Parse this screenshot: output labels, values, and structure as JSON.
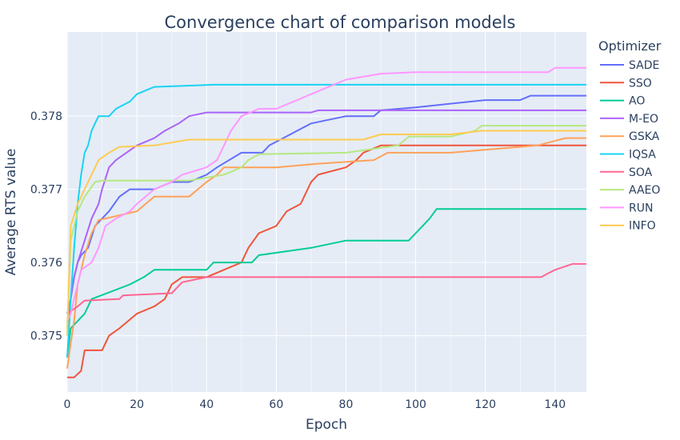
{
  "chart_data": {
    "type": "line",
    "title": "Convergence chart of comparison models",
    "xlabel": "Epoch",
    "ylabel": "Average RTS value",
    "xlim": [
      0,
      149
    ],
    "ylim": [
      0.37423,
      0.37915
    ],
    "xticks": [
      0,
      20,
      40,
      60,
      80,
      100,
      120,
      140
    ],
    "yticks": [
      0.375,
      0.376,
      0.377,
      0.378
    ],
    "ytick_labels": [
      "0.375",
      "0.376",
      "0.377",
      "0.378"
    ],
    "grid": true,
    "legend_title": "Optimizer",
    "legend_position": "right",
    "series": [
      {
        "name": "SADE",
        "color": "#636efa",
        "points": [
          [
            0,
            0.3751
          ],
          [
            1,
            0.3755
          ],
          [
            2,
            0.3758
          ],
          [
            3,
            0.376
          ],
          [
            4,
            0.3761
          ],
          [
            6,
            0.3762
          ],
          [
            8,
            0.3765
          ],
          [
            10,
            0.3766
          ],
          [
            12,
            0.3767
          ],
          [
            15,
            0.3769
          ],
          [
            18,
            0.377
          ],
          [
            25,
            0.377
          ],
          [
            30,
            0.3771
          ],
          [
            35,
            0.3771
          ],
          [
            40,
            0.3772
          ],
          [
            43,
            0.3773
          ],
          [
            50,
            0.3775
          ],
          [
            56,
            0.3775
          ],
          [
            58,
            0.3776
          ],
          [
            62,
            0.3777
          ],
          [
            70,
            0.3779
          ],
          [
            80,
            0.378
          ],
          [
            88,
            0.378
          ],
          [
            90,
            0.37808
          ],
          [
            100,
            0.37812
          ],
          [
            110,
            0.37817
          ],
          [
            120,
            0.37822
          ],
          [
            130,
            0.37822
          ],
          [
            133,
            0.37828
          ],
          [
            149,
            0.37828
          ]
        ]
      },
      {
        "name": "SSO",
        "color": "#ef553b",
        "points": [
          [
            0,
            0.37443
          ],
          [
            2,
            0.37443
          ],
          [
            4,
            0.37452
          ],
          [
            5,
            0.3748
          ],
          [
            10,
            0.3748
          ],
          [
            12,
            0.375
          ],
          [
            15,
            0.3751
          ],
          [
            20,
            0.3753
          ],
          [
            25,
            0.3754
          ],
          [
            28,
            0.3755
          ],
          [
            30,
            0.3757
          ],
          [
            33,
            0.3758
          ],
          [
            40,
            0.3758
          ],
          [
            50,
            0.376
          ],
          [
            52,
            0.3762
          ],
          [
            55,
            0.3764
          ],
          [
            60,
            0.3765
          ],
          [
            63,
            0.3767
          ],
          [
            67,
            0.3768
          ],
          [
            70,
            0.3771
          ],
          [
            72,
            0.3772
          ],
          [
            80,
            0.3773
          ],
          [
            83,
            0.3774
          ],
          [
            85,
            0.3775
          ],
          [
            90,
            0.3776
          ],
          [
            149,
            0.3776
          ]
        ]
      },
      {
        "name": "AO",
        "color": "#00cc96",
        "points": [
          [
            0,
            0.3747
          ],
          [
            1,
            0.3751
          ],
          [
            5,
            0.3753
          ],
          [
            7,
            0.3755
          ],
          [
            18,
            0.3757
          ],
          [
            22,
            0.3758
          ],
          [
            25,
            0.3759
          ],
          [
            40,
            0.3759
          ],
          [
            42,
            0.376
          ],
          [
            53,
            0.376
          ],
          [
            55,
            0.3761
          ],
          [
            70,
            0.3762
          ],
          [
            80,
            0.3763
          ],
          [
            98,
            0.3763
          ],
          [
            100,
            0.3764
          ],
          [
            102,
            0.3765
          ],
          [
            104,
            0.3766
          ],
          [
            106,
            0.37673
          ],
          [
            149,
            0.37673
          ]
        ]
      },
      {
        "name": "M-EO",
        "color": "#ab63fa",
        "points": [
          [
            0,
            0.3753
          ],
          [
            1,
            0.3755
          ],
          [
            2,
            0.3758
          ],
          [
            3,
            0.376
          ],
          [
            5,
            0.3763
          ],
          [
            7,
            0.3766
          ],
          [
            9,
            0.3768
          ],
          [
            10,
            0.377
          ],
          [
            12,
            0.3773
          ],
          [
            14,
            0.3774
          ],
          [
            17,
            0.3775
          ],
          [
            20,
            0.3776
          ],
          [
            25,
            0.3777
          ],
          [
            28,
            0.3778
          ],
          [
            32,
            0.3779
          ],
          [
            35,
            0.378
          ],
          [
            40,
            0.37805
          ],
          [
            70,
            0.37805
          ],
          [
            72,
            0.37808
          ],
          [
            149,
            0.37808
          ]
        ]
      },
      {
        "name": "GSKA",
        "color": "#ffa15a",
        "points": [
          [
            0,
            0.37455
          ],
          [
            1,
            0.3749
          ],
          [
            2,
            0.3752
          ],
          [
            3,
            0.3757
          ],
          [
            5,
            0.3761
          ],
          [
            7,
            0.3764
          ],
          [
            9,
            0.37658
          ],
          [
            20,
            0.3767
          ],
          [
            25,
            0.3769
          ],
          [
            35,
            0.3769
          ],
          [
            40,
            0.3771
          ],
          [
            43,
            0.3772
          ],
          [
            45,
            0.3773
          ],
          [
            60,
            0.3773
          ],
          [
            72,
            0.37735
          ],
          [
            88,
            0.3774
          ],
          [
            92,
            0.3775
          ],
          [
            110,
            0.3775
          ],
          [
            135,
            0.3776
          ],
          [
            139,
            0.37765
          ],
          [
            143,
            0.3777
          ],
          [
            149,
            0.3777
          ]
        ]
      },
      {
        "name": "IQSA",
        "color": "#19d3f3",
        "points": [
          [
            0,
            0.3747
          ],
          [
            1,
            0.3755
          ],
          [
            2,
            0.3762
          ],
          [
            3,
            0.3768
          ],
          [
            4,
            0.3772
          ],
          [
            5,
            0.3775
          ],
          [
            6,
            0.3776
          ],
          [
            7,
            0.3778
          ],
          [
            8,
            0.3779
          ],
          [
            9,
            0.378
          ],
          [
            12,
            0.378
          ],
          [
            14,
            0.3781
          ],
          [
            18,
            0.3782
          ],
          [
            20,
            0.3783
          ],
          [
            25,
            0.3784
          ],
          [
            42,
            0.37843
          ],
          [
            149,
            0.37843
          ]
        ]
      },
      {
        "name": "SOA",
        "color": "#ff6692",
        "points": [
          [
            0,
            0.3753
          ],
          [
            3,
            0.3754
          ],
          [
            5,
            0.37548
          ],
          [
            15,
            0.3755
          ],
          [
            16,
            0.37555
          ],
          [
            30,
            0.37558
          ],
          [
            33,
            0.37573
          ],
          [
            40,
            0.3758
          ],
          [
            136,
            0.3758
          ],
          [
            138,
            0.37585
          ],
          [
            140,
            0.3759
          ],
          [
            145,
            0.37598
          ],
          [
            149,
            0.37598
          ]
        ]
      },
      {
        "name": "AAEO",
        "color": "#b6e880",
        "points": [
          [
            0,
            0.3751
          ],
          [
            1,
            0.3763
          ],
          [
            3,
            0.3767
          ],
          [
            5,
            0.3769
          ],
          [
            8,
            0.3771
          ],
          [
            10,
            0.37712
          ],
          [
            30,
            0.37712
          ],
          [
            35,
            0.37712
          ],
          [
            45,
            0.3772
          ],
          [
            50,
            0.3773
          ],
          [
            52,
            0.3774
          ],
          [
            55,
            0.37748
          ],
          [
            80,
            0.3775
          ],
          [
            95,
            0.3776
          ],
          [
            98,
            0.37772
          ],
          [
            110,
            0.37772
          ],
          [
            117,
            0.3778
          ],
          [
            119,
            0.37787
          ],
          [
            149,
            0.37787
          ]
        ]
      },
      {
        "name": "RUN",
        "color": "#ff97ff",
        "points": [
          [
            0,
            0.3752
          ],
          [
            1,
            0.3753
          ],
          [
            2,
            0.3755
          ],
          [
            3,
            0.3757
          ],
          [
            4,
            0.3759
          ],
          [
            7,
            0.376
          ],
          [
            9,
            0.3762
          ],
          [
            11,
            0.3765
          ],
          [
            14,
            0.3766
          ],
          [
            18,
            0.3767
          ],
          [
            20,
            0.3768
          ],
          [
            25,
            0.377
          ],
          [
            30,
            0.3771
          ],
          [
            33,
            0.3772
          ],
          [
            40,
            0.3773
          ],
          [
            43,
            0.3774
          ],
          [
            45,
            0.3776
          ],
          [
            47,
            0.3778
          ],
          [
            50,
            0.378
          ],
          [
            55,
            0.3781
          ],
          [
            60,
            0.3781
          ],
          [
            65,
            0.3782
          ],
          [
            70,
            0.3783
          ],
          [
            75,
            0.3784
          ],
          [
            80,
            0.3785
          ],
          [
            90,
            0.37858
          ],
          [
            100,
            0.3786
          ],
          [
            138,
            0.3786
          ],
          [
            140,
            0.37866
          ],
          [
            149,
            0.37866
          ]
        ]
      },
      {
        "name": "INFO",
        "color": "#fecb52",
        "points": [
          [
            0,
            0.375
          ],
          [
            1,
            0.3765
          ],
          [
            3,
            0.3768
          ],
          [
            5,
            0.377
          ],
          [
            7,
            0.3772
          ],
          [
            9,
            0.3774
          ],
          [
            12,
            0.3775
          ],
          [
            15,
            0.37758
          ],
          [
            25,
            0.3776
          ],
          [
            35,
            0.37768
          ],
          [
            45,
            0.37768
          ],
          [
            65,
            0.37768
          ],
          [
            85,
            0.37768
          ],
          [
            90,
            0.37775
          ],
          [
            110,
            0.37775
          ],
          [
            119,
            0.3778
          ],
          [
            149,
            0.3778
          ]
        ]
      }
    ]
  }
}
